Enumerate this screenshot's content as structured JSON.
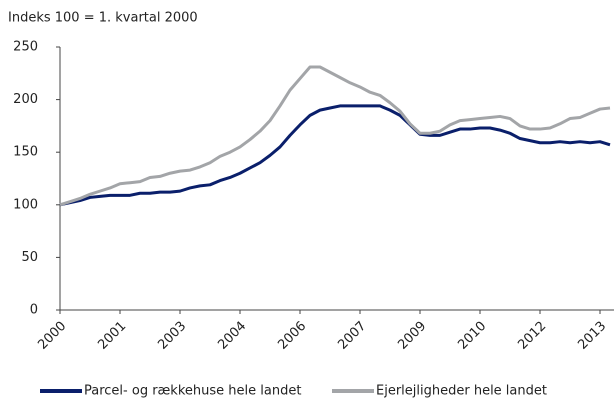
{
  "chart_data": {
    "type": "line",
    "title": "Indeks 100 = 1. kvartal 2000",
    "categories": [
      "2000",
      null,
      null,
      null,
      null,
      null,
      "2001",
      null,
      null,
      null,
      null,
      null,
      "2003",
      null,
      null,
      null,
      null,
      null,
      "2004",
      null,
      null,
      null,
      null,
      null,
      "2006",
      null,
      null,
      null,
      null,
      null,
      "2007",
      null,
      null,
      null,
      null,
      null,
      "2009",
      null,
      null,
      null,
      null,
      null,
      "2010",
      null,
      null,
      null,
      null,
      null,
      "2012",
      null,
      null,
      null,
      null,
      null,
      "2013",
      null
    ],
    "series": [
      {
        "name": "Parcel- og rækkehuse hele landet",
        "color": "#0a1f6b",
        "values": [
          100,
          102,
          104,
          107,
          108,
          109,
          109,
          109,
          111,
          111,
          112,
          112,
          113,
          116,
          118,
          119,
          123,
          126,
          130,
          135,
          140,
          147,
          155,
          166,
          176,
          185,
          190,
          192,
          194,
          194,
          194,
          194,
          194,
          190,
          185,
          176,
          167,
          166,
          166,
          169,
          172,
          172,
          173,
          173,
          171,
          168,
          163,
          161,
          159,
          159,
          160,
          159,
          160,
          159,
          160,
          157
        ]
      },
      {
        "name": "Ejerlejligheder hele landet",
        "color": "#a3a5a8",
        "values": [
          100,
          103,
          106,
          110,
          113,
          116,
          120,
          121,
          122,
          126,
          127,
          130,
          132,
          133,
          136,
          140,
          146,
          150,
          155,
          162,
          170,
          180,
          194,
          209,
          220,
          231,
          231,
          226,
          221,
          216,
          212,
          207,
          204,
          197,
          189,
          177,
          168,
          168,
          170,
          176,
          180,
          181,
          182,
          183,
          184,
          182,
          175,
          172,
          172,
          173,
          177,
          182,
          183,
          187,
          191,
          192
        ]
      }
    ],
    "ylim": [
      0,
      250
    ],
    "yticks": [
      0,
      50,
      100,
      150,
      200,
      250
    ]
  }
}
